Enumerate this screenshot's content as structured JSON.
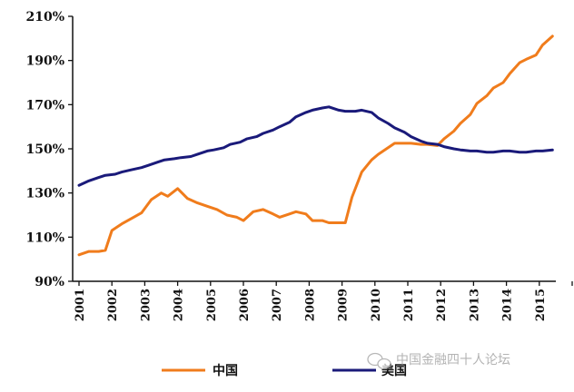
{
  "chart_data": {
    "type": "line",
    "title": "",
    "xlabel": "",
    "ylabel": "",
    "xlim": [
      2001,
      2016
    ],
    "ylim": [
      90,
      210
    ],
    "y_ticks": [
      "90%",
      "110%",
      "130%",
      "150%",
      "170%",
      "190%",
      "210%"
    ],
    "y_tick_values": [
      90,
      110,
      130,
      150,
      170,
      190,
      210
    ],
    "x_ticks": [
      "2001",
      "2002",
      "2003",
      "2004",
      "2005",
      "2006",
      "2007",
      "2008",
      "2009",
      "2010",
      "2011",
      "2012",
      "2013",
      "2014",
      "2015"
    ],
    "grid": false,
    "legend_position": "bottom",
    "series": [
      {
        "name": "中国",
        "color": "#f07c1c",
        "points": [
          [
            2001.0,
            102
          ],
          [
            2001.3,
            103.5
          ],
          [
            2001.6,
            103.5
          ],
          [
            2001.8,
            104
          ],
          [
            2002.0,
            113
          ],
          [
            2002.3,
            116
          ],
          [
            2002.6,
            118.5
          ],
          [
            2002.9,
            121
          ],
          [
            2003.2,
            127
          ],
          [
            2003.5,
            130
          ],
          [
            2003.7,
            128.5
          ],
          [
            2004.0,
            132
          ],
          [
            2004.3,
            127.5
          ],
          [
            2004.6,
            125.5
          ],
          [
            2004.9,
            124
          ],
          [
            2005.2,
            122.5
          ],
          [
            2005.5,
            120
          ],
          [
            2005.8,
            119
          ],
          [
            2006.0,
            117.5
          ],
          [
            2006.3,
            121.5
          ],
          [
            2006.6,
            122.5
          ],
          [
            2006.9,
            120.5
          ],
          [
            2007.1,
            119
          ],
          [
            2007.4,
            120.5
          ],
          [
            2007.6,
            121.5
          ],
          [
            2007.9,
            120.5
          ],
          [
            2008.1,
            117.5
          ],
          [
            2008.4,
            117.5
          ],
          [
            2008.6,
            116.5
          ],
          [
            2008.9,
            116.5
          ],
          [
            2009.1,
            116.5
          ],
          [
            2009.3,
            128
          ],
          [
            2009.6,
            139.5
          ],
          [
            2009.9,
            145
          ],
          [
            2010.1,
            147.5
          ],
          [
            2010.4,
            150.5
          ],
          [
            2010.6,
            152.5
          ],
          [
            2010.9,
            152.5
          ],
          [
            2011.1,
            152.5
          ],
          [
            2011.4,
            152
          ],
          [
            2011.6,
            152
          ],
          [
            2011.9,
            151.5
          ],
          [
            2012.1,
            154.5
          ],
          [
            2012.4,
            158
          ],
          [
            2012.6,
            161.5
          ],
          [
            2012.9,
            165.5
          ],
          [
            2013.1,
            170.5
          ],
          [
            2013.4,
            174
          ],
          [
            2013.6,
            177.5
          ],
          [
            2013.9,
            180
          ],
          [
            2014.1,
            184
          ],
          [
            2014.4,
            189
          ],
          [
            2014.6,
            190.5
          ],
          [
            2014.9,
            192.5
          ],
          [
            2015.1,
            197
          ],
          [
            2015.4,
            201
          ]
        ]
      },
      {
        "name": "美国",
        "color": "#1a1a7a",
        "points": [
          [
            2001.0,
            133.5
          ],
          [
            2001.3,
            135.5
          ],
          [
            2001.6,
            137
          ],
          [
            2001.8,
            138
          ],
          [
            2002.1,
            138.5
          ],
          [
            2002.3,
            139.5
          ],
          [
            2002.6,
            140.5
          ],
          [
            2002.9,
            141.5
          ],
          [
            2003.1,
            142.5
          ],
          [
            2003.4,
            144
          ],
          [
            2003.6,
            145
          ],
          [
            2003.9,
            145.5
          ],
          [
            2004.1,
            146
          ],
          [
            2004.4,
            146.5
          ],
          [
            2004.6,
            147.5
          ],
          [
            2004.9,
            149
          ],
          [
            2005.1,
            149.5
          ],
          [
            2005.4,
            150.5
          ],
          [
            2005.6,
            152
          ],
          [
            2005.9,
            153
          ],
          [
            2006.1,
            154.5
          ],
          [
            2006.4,
            155.5
          ],
          [
            2006.6,
            157
          ],
          [
            2006.9,
            158.5
          ],
          [
            2007.1,
            160
          ],
          [
            2007.4,
            162
          ],
          [
            2007.6,
            164.5
          ],
          [
            2007.9,
            166.5
          ],
          [
            2008.1,
            167.5
          ],
          [
            2008.4,
            168.5
          ],
          [
            2008.6,
            169
          ],
          [
            2008.9,
            167.5
          ],
          [
            2009.1,
            167
          ],
          [
            2009.4,
            167
          ],
          [
            2009.6,
            167.5
          ],
          [
            2009.9,
            166.5
          ],
          [
            2010.1,
            164
          ],
          [
            2010.4,
            161.5
          ],
          [
            2010.6,
            159.5
          ],
          [
            2010.9,
            157.5
          ],
          [
            2011.1,
            155.5
          ],
          [
            2011.4,
            153.5
          ],
          [
            2011.6,
            152.5
          ],
          [
            2011.9,
            152
          ],
          [
            2012.1,
            151
          ],
          [
            2012.4,
            150
          ],
          [
            2012.6,
            149.5
          ],
          [
            2012.9,
            149
          ],
          [
            2013.1,
            149
          ],
          [
            2013.4,
            148.5
          ],
          [
            2013.6,
            148.5
          ],
          [
            2013.9,
            149
          ],
          [
            2014.1,
            149
          ],
          [
            2014.4,
            148.5
          ],
          [
            2014.6,
            148.5
          ],
          [
            2014.9,
            149
          ],
          [
            2015.1,
            149
          ],
          [
            2015.4,
            149.5
          ]
        ]
      }
    ]
  },
  "watermark": {
    "text": "中国金融四十人论坛",
    "icon": "wechat-icon"
  },
  "colors": {
    "axis": "#111111",
    "china": "#f07c1c",
    "usa": "#1a1a7a"
  }
}
